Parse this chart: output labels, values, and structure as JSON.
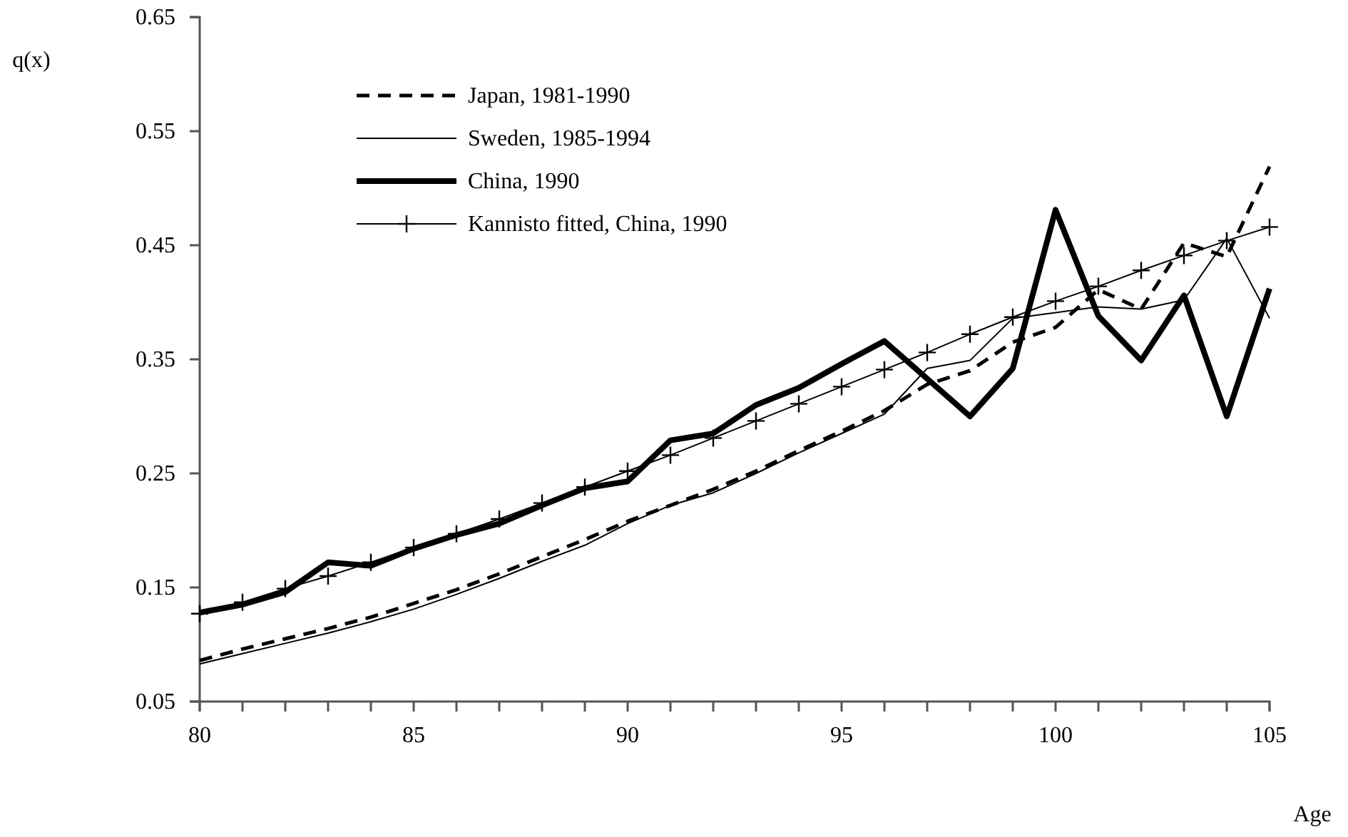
{
  "chart_data": {
    "type": "line",
    "xlabel": "Age",
    "ylabel": "q(x)",
    "x": [
      80,
      81,
      82,
      83,
      84,
      85,
      86,
      87,
      88,
      89,
      90,
      91,
      92,
      93,
      94,
      95,
      96,
      97,
      98,
      99,
      100,
      101,
      102,
      103,
      104,
      105
    ],
    "xlim": [
      80,
      105
    ],
    "xticks": [
      80,
      {
        "value": 81,
        "label": null
      },
      {
        "value": 82,
        "label": null
      },
      {
        "value": 83,
        "label": null
      },
      {
        "value": 84,
        "label": null
      },
      85,
      {
        "value": 86,
        "label": null
      },
      {
        "value": 87,
        "label": null
      },
      {
        "value": 88,
        "label": null
      },
      {
        "value": 89,
        "label": null
      },
      90,
      {
        "value": 91,
        "label": null
      },
      {
        "value": 92,
        "label": null
      },
      {
        "value": 93,
        "label": null
      },
      {
        "value": 94,
        "label": null
      },
      95,
      {
        "value": 96,
        "label": null
      },
      {
        "value": 97,
        "label": null
      },
      {
        "value": 98,
        "label": null
      },
      {
        "value": 99,
        "label": null
      },
      100,
      {
        "value": 101,
        "label": null
      },
      {
        "value": 102,
        "label": null
      },
      {
        "value": 103,
        "label": null
      },
      {
        "value": 104,
        "label": null
      },
      105
    ],
    "ylim": [
      0.05,
      0.65
    ],
    "yticks": [
      0.05,
      0.15,
      0.25,
      0.35,
      0.45,
      0.55,
      0.65
    ],
    "grid": false,
    "legend": "top left",
    "series": [
      {
        "name": "Japan, 1981-1990",
        "color": "#000000",
        "line_style": "dashed",
        "marker": "none",
        "values": [
          0.086,
          0.096,
          0.105,
          0.114,
          0.124,
          0.136,
          0.148,
          0.162,
          0.177,
          0.192,
          0.208,
          0.222,
          0.236,
          0.252,
          0.27,
          0.287,
          0.305,
          0.328,
          0.34,
          0.365,
          0.378,
          0.411,
          0.394,
          0.452,
          0.44,
          0.519
        ]
      },
      {
        "name": "Sweden, 1985-1994",
        "color": "#000000",
        "line_style": "solid",
        "marker": "none",
        "values": [
          0.083,
          0.092,
          0.101,
          0.11,
          0.12,
          0.131,
          0.144,
          0.158,
          0.173,
          0.187,
          0.206,
          0.222,
          0.233,
          0.25,
          0.268,
          0.285,
          0.302,
          0.342,
          0.349,
          0.386,
          0.391,
          0.396,
          0.394,
          0.402,
          0.456,
          0.386
        ]
      },
      {
        "name": "China, 1990",
        "color": "#000000",
        "line_style": "solid",
        "marker": "none",
        "values": [
          0.128,
          0.135,
          0.146,
          0.172,
          0.169,
          0.184,
          0.196,
          0.206,
          0.222,
          0.237,
          0.243,
          0.279,
          0.285,
          0.31,
          0.325,
          0.346,
          0.366,
          0.333,
          0.3,
          0.342,
          0.481,
          0.388,
          0.349,
          0.406,
          0.3,
          0.412
        ]
      },
      {
        "name": "Kannisto fitted, China, 1990",
        "color": "#000000",
        "line_style": "solid",
        "marker": "cross",
        "values": [
          0.127,
          0.137,
          0.149,
          0.16,
          0.172,
          0.185,
          0.197,
          0.21,
          0.224,
          0.238,
          0.252,
          0.266,
          0.281,
          0.296,
          0.311,
          0.326,
          0.341,
          0.356,
          0.372,
          0.387,
          0.401,
          0.414,
          0.428,
          0.441,
          0.454,
          0.466
        ]
      }
    ]
  }
}
